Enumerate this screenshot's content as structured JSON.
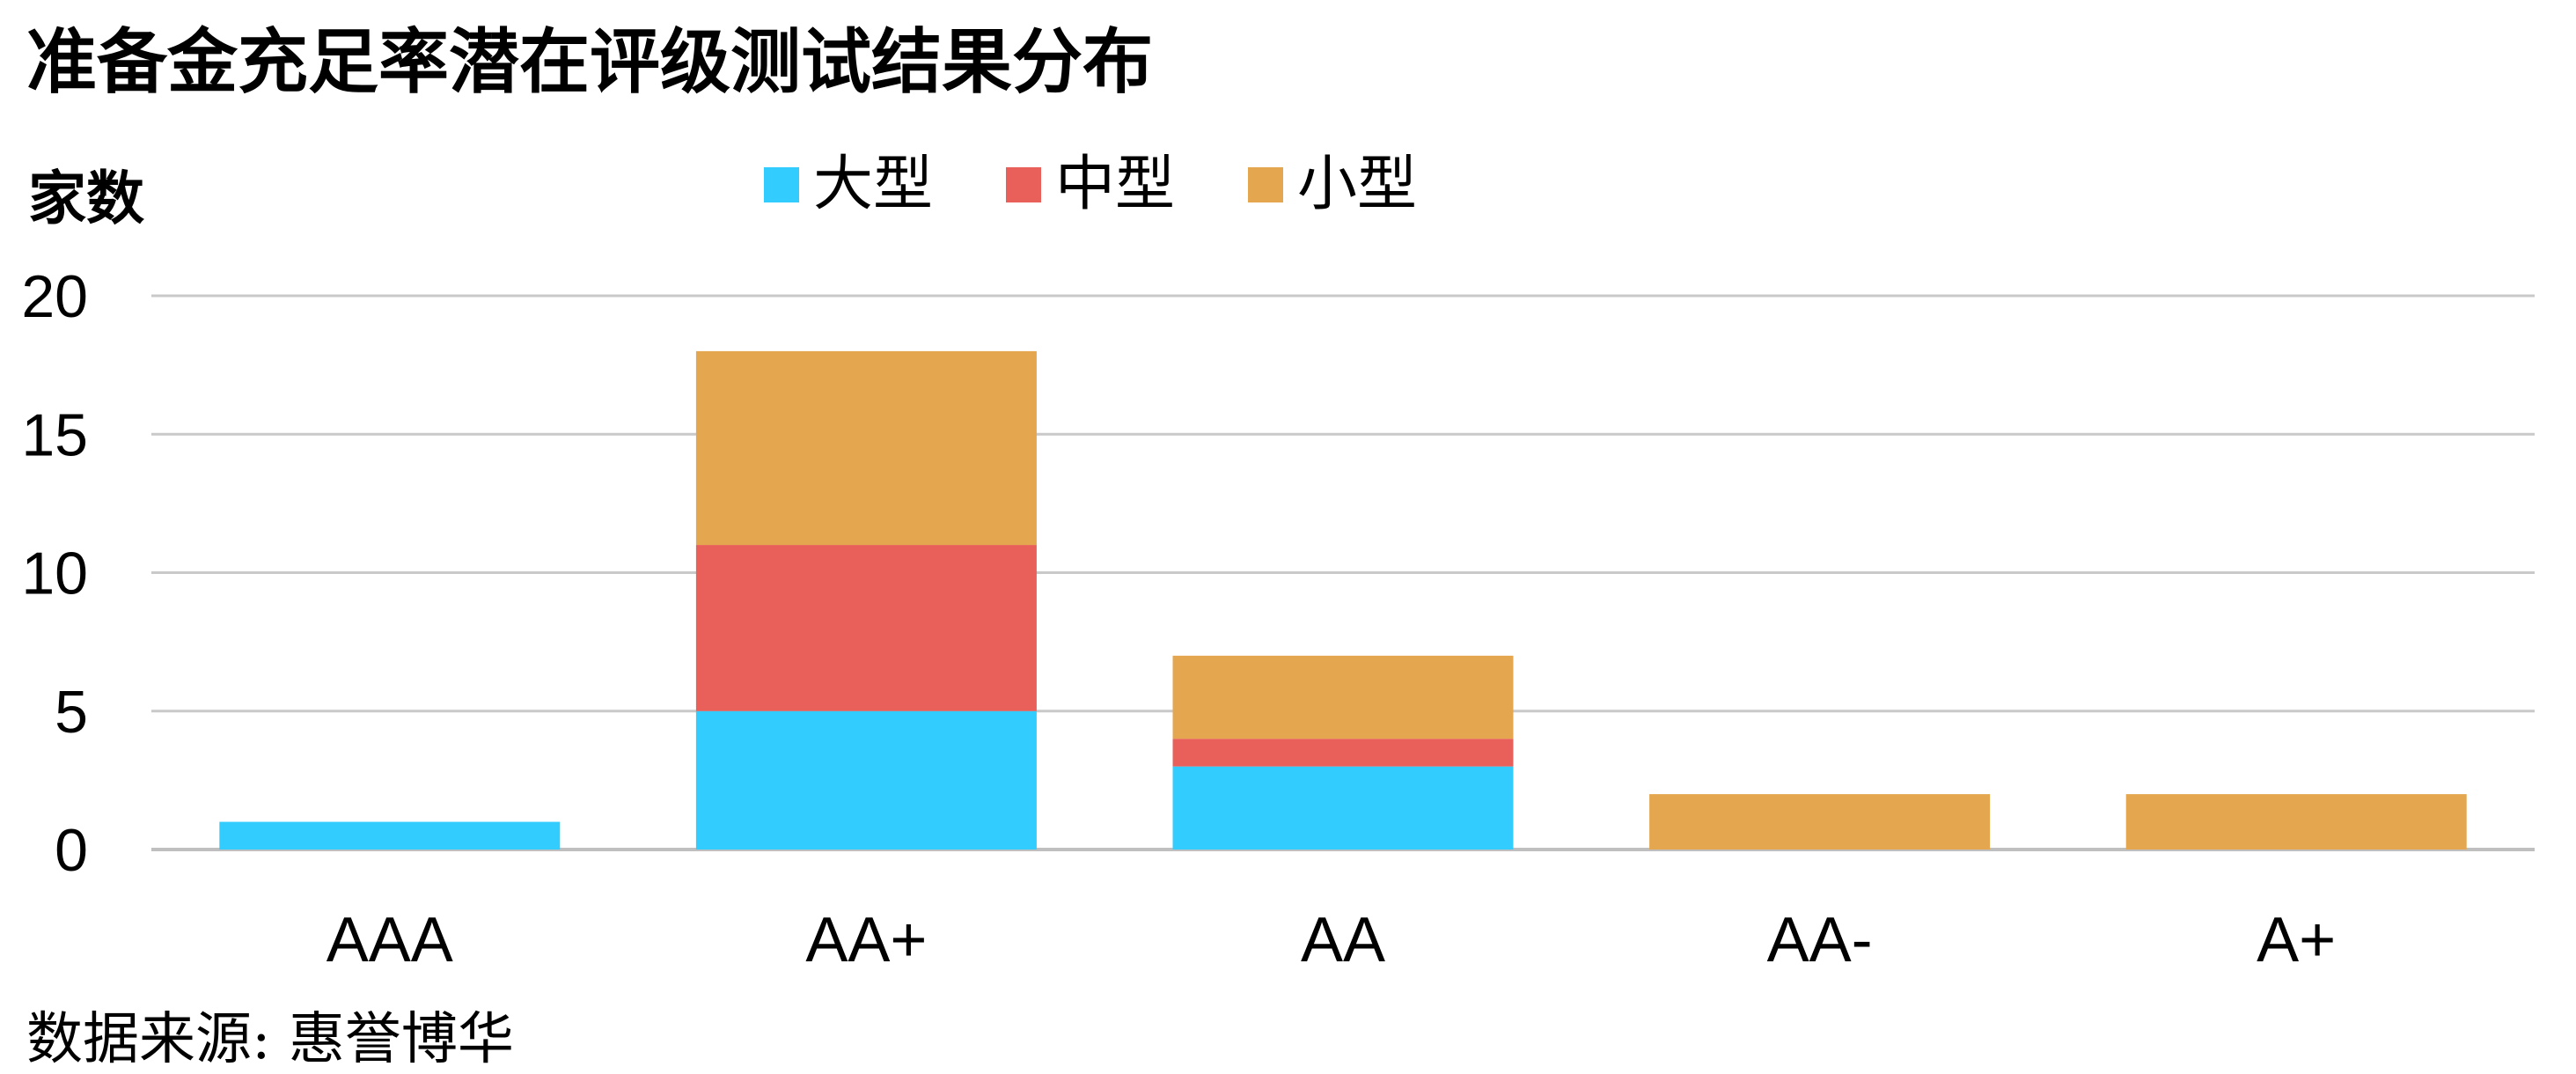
{
  "chart_data": {
    "type": "bar",
    "stacked": true,
    "title": "准备金充足率潜在评级测试结果分布",
    "ylabel": "家数",
    "xlabel": "",
    "categories": [
      "AAA",
      "AA+",
      "AA",
      "AA-",
      "A+"
    ],
    "series": [
      {
        "name": "大型",
        "color": "#33CCFF",
        "values": [
          1,
          5,
          3,
          0,
          0
        ]
      },
      {
        "name": "中型",
        "color": "#E9605A",
        "values": [
          0,
          6,
          1,
          0,
          0
        ]
      },
      {
        "name": "小型",
        "color": "#E4A64E",
        "values": [
          0,
          7,
          3,
          2,
          2
        ]
      }
    ],
    "ylim": [
      0,
      20
    ],
    "yticks": [
      0,
      5,
      10,
      15,
      20
    ],
    "grid": true,
    "legend": "top-center",
    "source": "数据来源: 惠誉博华"
  },
  "colors": {
    "grid": "#C9C9C9",
    "axis": "#BFBFBF",
    "text": "#000000"
  }
}
